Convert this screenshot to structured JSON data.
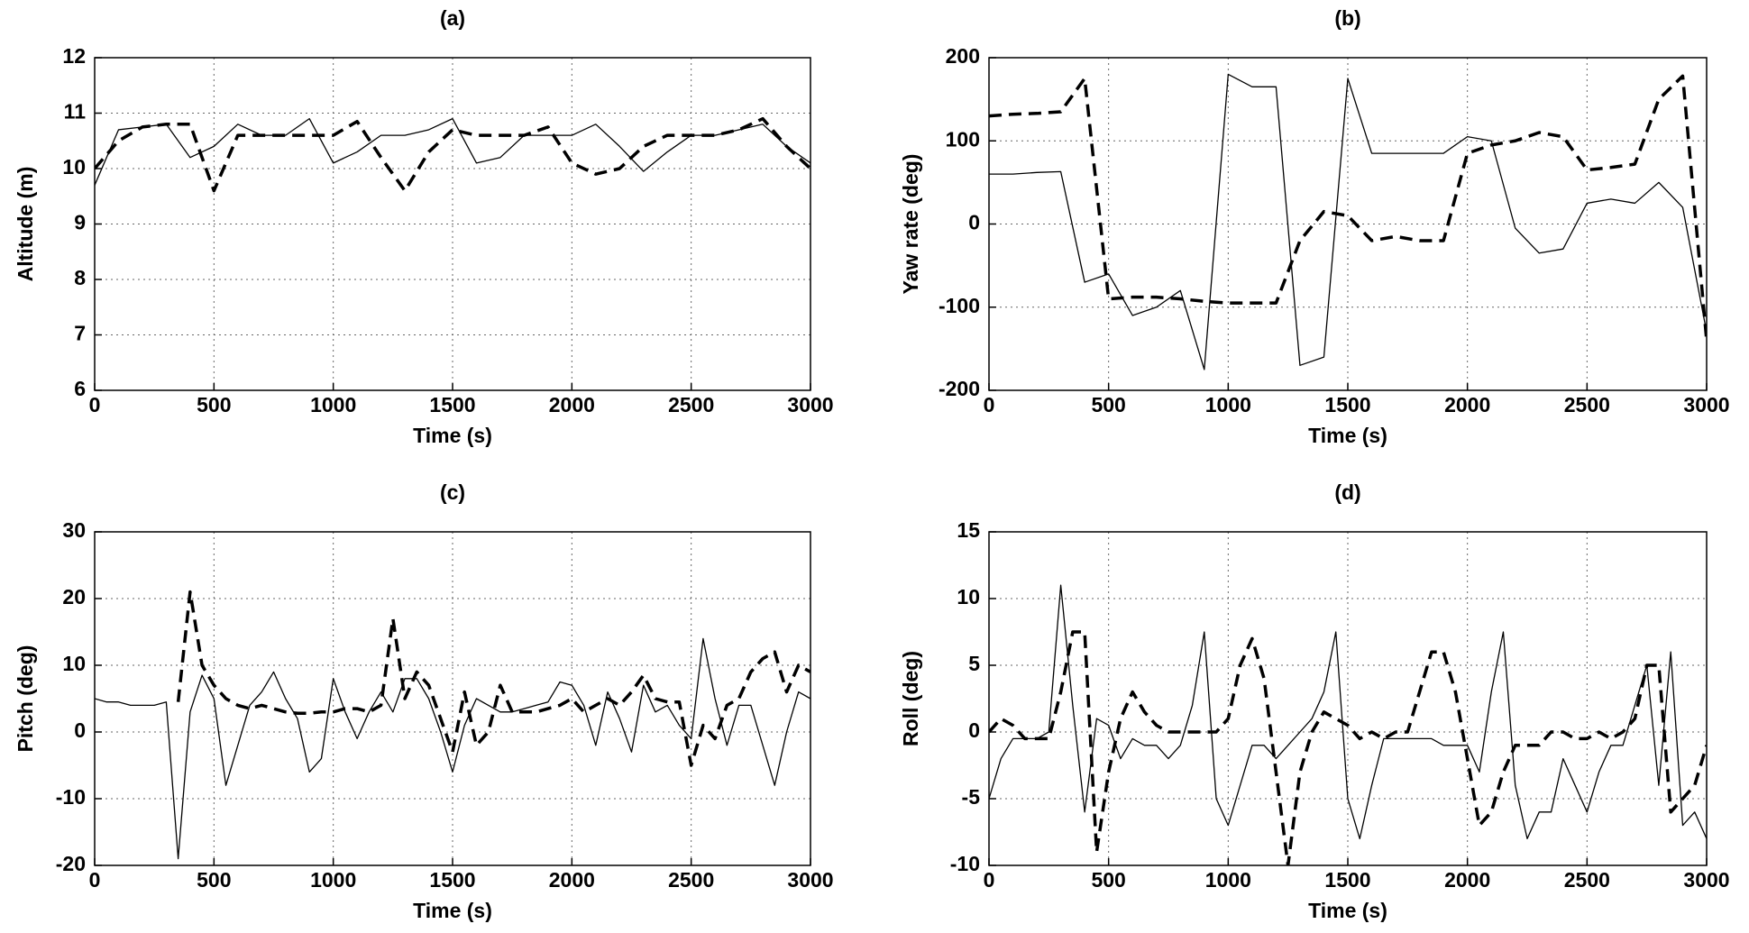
{
  "chart_data": [
    {
      "type": "line",
      "title": "(a)",
      "xlabel": "Time (s)",
      "ylabel": "Altitude (m)",
      "x": [
        0,
        100,
        200,
        300,
        400,
        500,
        600,
        700,
        800,
        900,
        1000,
        1100,
        1200,
        1300,
        1400,
        1500,
        1600,
        1700,
        1800,
        1900,
        2000,
        2100,
        2200,
        2300,
        2400,
        2500,
        2600,
        2700,
        2800,
        2900,
        3000
      ],
      "series": [
        {
          "color": "#000000",
          "line_style": "solid",
          "values": [
            9.7,
            10.7,
            10.75,
            10.8,
            10.2,
            10.4,
            10.8,
            10.6,
            10.6,
            10.9,
            10.1,
            10.3,
            10.6,
            10.6,
            10.7,
            10.9,
            10.1,
            10.2,
            10.6,
            10.6,
            10.6,
            10.8,
            10.4,
            9.95,
            10.3,
            10.6,
            10.6,
            10.7,
            10.8,
            10.4,
            10.1
          ]
        },
        {
          "color": "#000000",
          "line_style": "dashed",
          "values": [
            10.0,
            10.5,
            10.75,
            10.8,
            10.8,
            9.6,
            10.6,
            10.6,
            10.6,
            10.6,
            10.6,
            10.85,
            10.2,
            9.6,
            10.3,
            10.7,
            10.6,
            10.6,
            10.6,
            10.75,
            10.1,
            9.9,
            10.0,
            10.4,
            10.6,
            10.6,
            10.6,
            10.7,
            10.9,
            10.4,
            10.0
          ]
        }
      ],
      "xlim": [
        0,
        3000
      ],
      "xticks": [
        0,
        500,
        1000,
        1500,
        2000,
        2500,
        3000
      ],
      "ylim": [
        6,
        12
      ],
      "yticks": [
        6,
        7,
        8,
        9,
        10,
        11,
        12
      ],
      "grid": true
    },
    {
      "type": "line",
      "title": "(b)",
      "xlabel": "Time (s)",
      "ylabel": "Yaw rate (deg)",
      "x": [
        0,
        100,
        200,
        300,
        400,
        500,
        600,
        700,
        800,
        900,
        1000,
        1100,
        1200,
        1300,
        1400,
        1500,
        1600,
        1700,
        1800,
        1900,
        2000,
        2100,
        2200,
        2300,
        2400,
        2500,
        2600,
        2700,
        2800,
        2900,
        3000
      ],
      "series": [
        {
          "color": "#000000",
          "line_style": "solid",
          "values": [
            60,
            60,
            62,
            63,
            -70,
            -60,
            -110,
            -100,
            -80,
            -175,
            180,
            165,
            165,
            -170,
            -160,
            175,
            85,
            85,
            85,
            85,
            105,
            100,
            -5,
            -35,
            -30,
            25,
            30,
            25,
            50,
            20,
            -130
          ]
        },
        {
          "color": "#000000",
          "line_style": "dashed",
          "values": [
            130,
            132,
            133,
            135,
            175,
            -90,
            -88,
            -88,
            -90,
            -93,
            -95,
            -95,
            -95,
            -20,
            15,
            10,
            -20,
            -15,
            -20,
            -20,
            85,
            95,
            100,
            110,
            105,
            65,
            68,
            72,
            150,
            178,
            -140
          ]
        }
      ],
      "xlim": [
        0,
        3000
      ],
      "xticks": [
        0,
        500,
        1000,
        1500,
        2000,
        2500,
        3000
      ],
      "ylim": [
        -200,
        200
      ],
      "yticks": [
        -200,
        -100,
        0,
        100,
        200
      ],
      "grid": true
    },
    {
      "type": "line",
      "title": "(c)",
      "xlabel": "Time (s)",
      "ylabel": "Pitch (deg)",
      "x": [
        0,
        50,
        100,
        150,
        200,
        250,
        300,
        350,
        400,
        450,
        500,
        550,
        600,
        650,
        700,
        750,
        800,
        850,
        900,
        950,
        1000,
        1050,
        1100,
        1150,
        1200,
        1250,
        1300,
        1350,
        1400,
        1450,
        1500,
        1550,
        1600,
        1650,
        1700,
        1750,
        1800,
        1850,
        1900,
        1950,
        2000,
        2050,
        2100,
        2150,
        2200,
        2250,
        2300,
        2350,
        2400,
        2450,
        2500,
        2550,
        2600,
        2650,
        2700,
        2750,
        2800,
        2850,
        2900,
        2950,
        3000
      ],
      "series": [
        {
          "color": "#000000",
          "line_style": "solid",
          "values": [
            5,
            4.5,
            4.5,
            4,
            4,
            4,
            4.5,
            -19,
            3,
            8.5,
            5,
            -8,
            -2,
            4,
            6,
            9,
            5,
            2,
            -6,
            -4,
            8,
            3,
            -1,
            3,
            6,
            3,
            8,
            8,
            5,
            0,
            -6,
            1,
            5,
            4,
            3,
            3,
            3.5,
            4,
            4.5,
            7.5,
            7,
            4,
            -2,
            6,
            2,
            -3,
            7,
            3,
            4,
            1,
            -1,
            14,
            5,
            -2,
            4,
            4,
            -2,
            -8,
            0,
            6,
            5
          ]
        },
        {
          "color": "#000000",
          "line_style": "dashed",
          "values": [
            null,
            null,
            null,
            null,
            null,
            null,
            null,
            4.5,
            21,
            10,
            7,
            5,
            4,
            3.5,
            4,
            3.5,
            3,
            2.8,
            2.8,
            3,
            3,
            3.5,
            3.5,
            3,
            4,
            17,
            5,
            9,
            7,
            2,
            -3,
            6,
            -2,
            0,
            7,
            3,
            3,
            3,
            3.5,
            4,
            5,
            3,
            4,
            5,
            4,
            6,
            8.5,
            5,
            4.5,
            4.5,
            -5,
            1,
            -1,
            4,
            5,
            9,
            11,
            12,
            6,
            10,
            9
          ]
        }
      ],
      "xlim": [
        0,
        3000
      ],
      "xticks": [
        0,
        500,
        1000,
        1500,
        2000,
        2500,
        3000
      ],
      "ylim": [
        -20,
        30
      ],
      "yticks": [
        -20,
        -10,
        0,
        10,
        20,
        30
      ],
      "grid": true
    },
    {
      "type": "line",
      "title": "(d)",
      "xlabel": "Time (s)",
      "ylabel": "Roll (deg)",
      "x": [
        0,
        50,
        100,
        150,
        200,
        250,
        300,
        350,
        400,
        450,
        500,
        550,
        600,
        650,
        700,
        750,
        800,
        850,
        900,
        950,
        1000,
        1050,
        1100,
        1150,
        1200,
        1250,
        1300,
        1350,
        1400,
        1450,
        1500,
        1550,
        1600,
        1650,
        1700,
        1750,
        1800,
        1850,
        1900,
        1950,
        2000,
        2050,
        2100,
        2150,
        2200,
        2250,
        2300,
        2350,
        2400,
        2450,
        2500,
        2550,
        2600,
        2650,
        2700,
        2750,
        2800,
        2850,
        2900,
        2950,
        3000
      ],
      "series": [
        {
          "color": "#000000",
          "line_style": "solid",
          "values": [
            -5,
            -2,
            -0.5,
            -0.5,
            -0.5,
            0,
            11,
            2,
            -6,
            1,
            0.5,
            -2,
            -0.5,
            -1,
            -1,
            -2,
            -1,
            2,
            7.5,
            -5,
            -7,
            -4,
            -1,
            -1,
            -2,
            -1,
            0,
            1,
            3,
            7.5,
            -5,
            -8,
            -4,
            -0.5,
            -0.5,
            -0.5,
            -0.5,
            -0.5,
            -1,
            -1,
            -1,
            -3,
            3,
            7.5,
            -4,
            -8,
            -6,
            -6,
            -2,
            -4,
            -6,
            -3,
            -1,
            -1,
            2,
            5,
            -4,
            6,
            -7,
            -6,
            -8
          ]
        },
        {
          "color": "#000000",
          "line_style": "dashed",
          "values": [
            0,
            1,
            0.5,
            -0.5,
            -0.5,
            -0.5,
            3,
            7.5,
            7.5,
            -9,
            -3,
            1,
            3,
            1.5,
            0.5,
            0,
            0,
            0,
            0,
            0,
            1,
            5,
            7,
            4,
            -3,
            -10,
            -3,
            0,
            1.5,
            1,
            0.5,
            -0.5,
            0,
            -0.5,
            0,
            0,
            3,
            6,
            6,
            3,
            -2,
            -7,
            -6,
            -3,
            -1,
            -1,
            -1,
            0,
            0,
            -0.5,
            -0.5,
            0,
            -0.5,
            0,
            1,
            5,
            5,
            -6,
            -5,
            -4,
            -1
          ]
        }
      ],
      "xlim": [
        0,
        3000
      ],
      "xticks": [
        0,
        500,
        1000,
        1500,
        2000,
        2500,
        3000
      ],
      "ylim": [
        -10,
        15
      ],
      "yticks": [
        -10,
        -5,
        0,
        5,
        10,
        15
      ],
      "grid": true
    }
  ]
}
